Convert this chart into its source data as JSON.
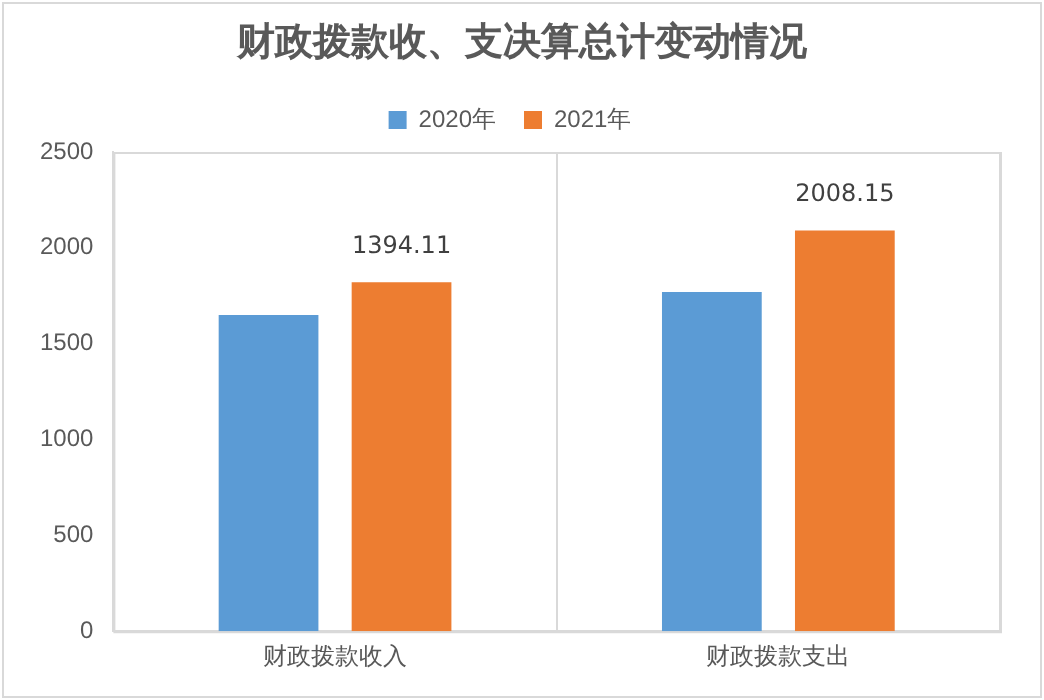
{
  "chart_data": {
    "type": "bar",
    "title": "财政拨款收、支决算总计变动情况",
    "categories": [
      "财政拨款收入",
      "财政拨款支出"
    ],
    "series": [
      {
        "name": "2020年",
        "color": "#5b9bd5",
        "values": [
          1650,
          1770
        ]
      },
      {
        "name": "2021年",
        "color": "#ed7d31",
        "values": [
          1820,
          2090
        ]
      }
    ],
    "annotations": [
      "1394.11",
      "2008.15"
    ],
    "ylim": [
      0,
      2500
    ],
    "yticks": [
      0,
      500,
      1000,
      1500,
      2000,
      2500
    ],
    "grid": "x",
    "legend": "top"
  }
}
